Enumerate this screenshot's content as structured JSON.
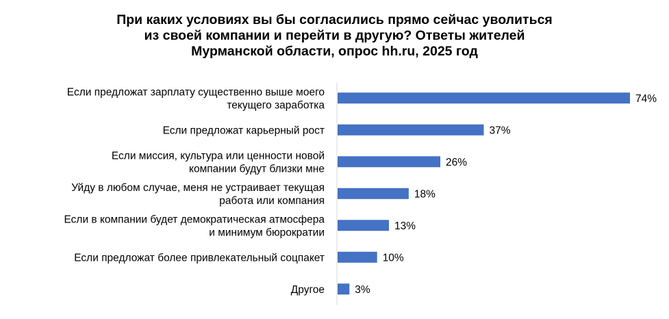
{
  "chart_data": {
    "type": "bar",
    "orientation": "horizontal",
    "title_lines": [
      "При каких условиях  вы бы согласились прямо сейчас уволиться",
      "из своей компании и перейти в другую?  Ответы жителей",
      "Мурманской области, опрос hh.ru, 2025 год"
    ],
    "categories": [
      [
        "Если предложат зарплату  существенно выше моего",
        "текущего заработка"
      ],
      [
        "Если предложат карьерный рост"
      ],
      [
        "Если миссия, культура или ценности новой",
        "компании  будут близки мне"
      ],
      [
        "Уйду в любом случае, меня не устраивает текущая",
        "работа или компания"
      ],
      [
        "Если в компании будет демократическая атмосфера",
        "и минимум бюрократии"
      ],
      [
        "Если предложат более привлекательный соцпакет"
      ],
      [
        "Другое"
      ]
    ],
    "values": [
      74,
      37,
      26,
      18,
      13,
      10,
      3
    ],
    "value_labels": [
      "74%",
      "37%",
      "26%",
      "18%",
      "13%",
      "10%",
      "3%"
    ],
    "unit": "%",
    "xlim": [
      0,
      74
    ],
    "bar_color": "#4472C4",
    "axis_color": "#D9D9D9",
    "grid": false,
    "legend": "none"
  }
}
